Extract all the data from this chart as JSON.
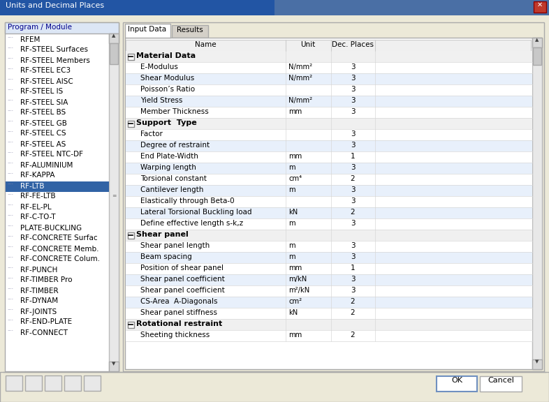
{
  "title": "Units and Decimal Places",
  "outer_bg": "#d4d0c8",
  "dialog_bg": "#ece9d8",
  "title_bar_color": "#0a246a",
  "title_bar_gradient_end": "#a6caf0",
  "left_panel_title": "Program / Module",
  "left_panel_bg": "#ffffff",
  "left_panel_header_bg": "#dce6f5",
  "left_panel_header_color": "#000080",
  "left_items": [
    "RFEM",
    "RF-STEEL Surfaces",
    "RF-STEEL Members",
    "RF-STEEL EC3",
    "RF-STEEL AISC",
    "RF-STEEL IS",
    "RF-STEEL SIA",
    "RF-STEEL BS",
    "RF-STEEL GB",
    "RF-STEEL CS",
    "RF-STEEL AS",
    "RF-STEEL NTC-DF",
    "RF-ALUMINIUM",
    "RF-KAPPA",
    "RF-LTB",
    "RF-FE-LTB",
    "RF-EL-PL",
    "RF-C-TO-T",
    "PLATE-BUCKLING",
    "RF-CONCRETE Surfac",
    "RF-CONCRETE Memb.",
    "RF-CONCRETE Colum.",
    "RF-PUNCH",
    "RF-TIMBER Pro",
    "RF-TIMBER",
    "RF-DYNAM",
    "RF-JOINTS",
    "RF-END-PLATE",
    "RF-CONNECT"
  ],
  "selected_item": "RF-LTB",
  "tab_active": "Input Data",
  "tab_inactive": "Results",
  "table_rows": [
    {
      "type": "section",
      "name": "Material Data"
    },
    {
      "type": "row",
      "name": "E-Modulus",
      "unit": "N/mm²",
      "dec": "3"
    },
    {
      "type": "row",
      "name": "Shear Modulus",
      "unit": "N/mm²",
      "dec": "3"
    },
    {
      "type": "row",
      "name": "Poisson’s Ratio",
      "unit": "",
      "dec": "3"
    },
    {
      "type": "row",
      "name": "Yield Stress",
      "unit": "N/mm²",
      "dec": "3"
    },
    {
      "type": "row",
      "name": "Member Thickness",
      "unit": "mm",
      "dec": "3"
    },
    {
      "type": "section",
      "name": "Support  Type"
    },
    {
      "type": "row",
      "name": "Factor",
      "unit": "",
      "dec": "3"
    },
    {
      "type": "row",
      "name": "Degree of restraint",
      "unit": "",
      "dec": "3"
    },
    {
      "type": "row",
      "name": "End Plate-Width",
      "unit": "mm",
      "dec": "1"
    },
    {
      "type": "row",
      "name": "Warping length",
      "unit": "m",
      "dec": "3"
    },
    {
      "type": "row",
      "name": "Torsional constant",
      "unit": "cm⁴",
      "dec": "2"
    },
    {
      "type": "row",
      "name": "Cantilever length",
      "unit": "m",
      "dec": "3"
    },
    {
      "type": "row",
      "name": "Elastically through Beta-0",
      "unit": "",
      "dec": "3"
    },
    {
      "type": "row",
      "name": "Lateral Torsional Buckling load",
      "unit": "kN",
      "dec": "2"
    },
    {
      "type": "row",
      "name": "Define effective length s-k,z",
      "unit": "m",
      "dec": "3"
    },
    {
      "type": "section",
      "name": "Shear panel"
    },
    {
      "type": "row",
      "name": "Shear panel length",
      "unit": "m",
      "dec": "3"
    },
    {
      "type": "row",
      "name": "Beam spacing",
      "unit": "m",
      "dec": "3"
    },
    {
      "type": "row",
      "name": "Position of shear panel",
      "unit": "mm",
      "dec": "1"
    },
    {
      "type": "row",
      "name": "Shear panel coefficient",
      "unit": "m/kN",
      "dec": "3"
    },
    {
      "type": "row",
      "name": "Shear panel coefficient",
      "unit": "m²/kN",
      "dec": "3"
    },
    {
      "type": "row",
      "name": "CS-Area  A-Diagonals",
      "unit": "cm²",
      "dec": "2"
    },
    {
      "type": "row",
      "name": "Shear panel stiffness",
      "unit": "kN",
      "dec": "2"
    },
    {
      "type": "section",
      "name": "Rotational restraint"
    },
    {
      "type": "row",
      "name": "Sheeting thickness",
      "unit": "mm",
      "dec": "2"
    }
  ],
  "button_ok": "OK",
  "button_cancel": "Cancel",
  "figw": 7.86,
  "figh": 5.76,
  "dpi": 100
}
